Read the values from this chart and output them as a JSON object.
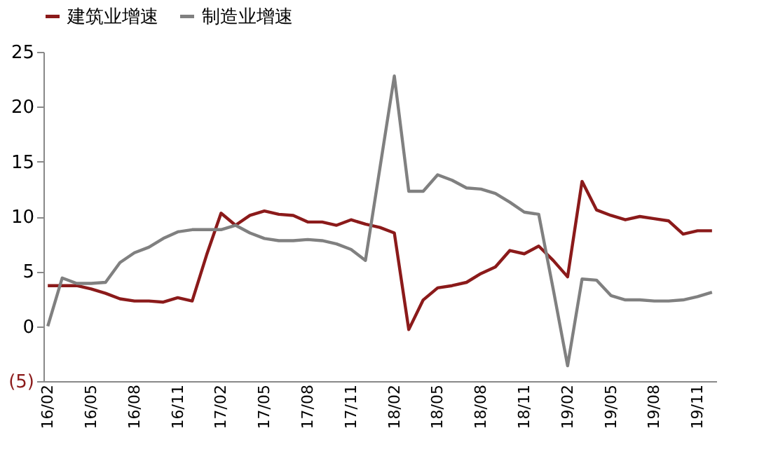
{
  "chart_data": {
    "type": "line",
    "categories": [
      "16/02",
      null,
      null,
      "16/05",
      null,
      null,
      "16/08",
      null,
      null,
      "16/11",
      null,
      null,
      "17/02",
      null,
      null,
      "17/05",
      null,
      null,
      "17/08",
      null,
      null,
      "17/11",
      null,
      null,
      "18/02",
      null,
      null,
      "18/05",
      null,
      null,
      "18/08",
      null,
      null,
      "18/11",
      null,
      null,
      "19/02",
      null,
      null,
      "19/05",
      null,
      null,
      "19/08",
      null,
      null,
      "19/11",
      null
    ],
    "series": [
      {
        "name": "建筑业增速",
        "color": "#8b1a1a",
        "values": [
          3.7,
          3.7,
          3.7,
          3.4,
          3.0,
          2.5,
          2.3,
          2.3,
          2.2,
          2.6,
          2.3,
          6.5,
          10.3,
          9.2,
          10.1,
          10.5,
          10.2,
          10.1,
          9.5,
          9.5,
          9.2,
          9.7,
          9.3,
          9.0,
          8.5,
          -0.3,
          2.4,
          3.5,
          3.7,
          4.0,
          4.8,
          5.4,
          6.9,
          6.6,
          7.3,
          6.0,
          4.5,
          13.2,
          10.6,
          10.1,
          9.7,
          10.0,
          9.8,
          9.6,
          8.4,
          8.7,
          8.7
        ]
      },
      {
        "name": "制造业增速",
        "color": "#808080",
        "values": [
          0,
          4.4,
          3.9,
          3.9,
          4.0,
          5.8,
          6.7,
          7.2,
          8.0,
          8.6,
          8.8,
          8.8,
          8.8,
          9.2,
          8.5,
          8.0,
          7.8,
          7.8,
          7.9,
          7.8,
          7.5,
          7.0,
          6.0,
          14.4,
          22.8,
          12.3,
          12.3,
          13.8,
          13.3,
          12.6,
          12.5,
          12.1,
          11.3,
          10.4,
          10.2,
          3.4,
          -3.6,
          4.3,
          4.2,
          2.8,
          2.4,
          2.4,
          2.3,
          2.3,
          2.4,
          2.7,
          3.1
        ]
      }
    ],
    "ylim": [
      -5,
      25
    ],
    "yticks": [
      {
        "value": -5,
        "label": "(5)"
      },
      0,
      5,
      10,
      15,
      20,
      25
    ],
    "grid": false,
    "legend": "top",
    "marker": "none",
    "line_style": "solid"
  }
}
